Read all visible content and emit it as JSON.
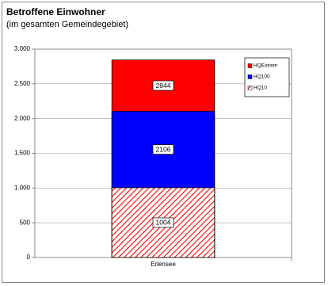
{
  "chart_data": {
    "type": "bar",
    "barmode": "overlay",
    "title": "Betroffene Einwohner",
    "subtitle": "(im gesamten Gemeindegebiet)",
    "categories": [
      "Erlensee"
    ],
    "series": [
      {
        "name": "HQExtrem",
        "color": "#ff0000",
        "values": [
          2844
        ]
      },
      {
        "name": "HQ100",
        "color": "#0000ff",
        "values": [
          2106
        ]
      },
      {
        "name": "HQ10",
        "color": "#ff0000",
        "pattern": "hatch",
        "values": [
          1004
        ]
      }
    ],
    "ylim": [
      0,
      3000
    ],
    "yticks": [
      0,
      500,
      {
        "value": 1000,
        "label": "1.000"
      },
      {
        "value": 1500,
        "label": "1.500"
      },
      {
        "value": 2000,
        "label": "2.000"
      },
      {
        "value": 2500,
        "label": "2.500"
      },
      {
        "value": 3000,
        "label": "3.000"
      }
    ],
    "grid": true,
    "legend": "top-right"
  }
}
